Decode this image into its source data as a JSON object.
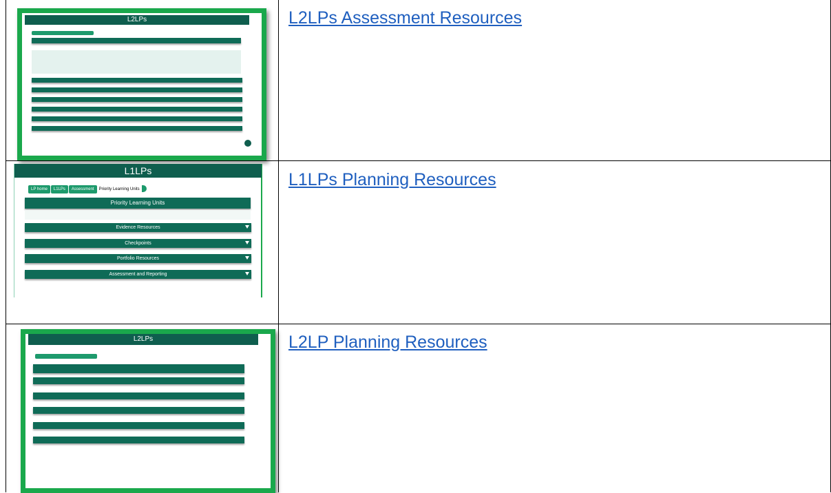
{
  "table": {
    "rows": [
      {
        "link": "L2LPs Assessment Resources",
        "thumbnail": {
          "title": "L2LPs"
        }
      },
      {
        "link": "L1LPs Planning Resources",
        "thumbnail": {
          "title": "L1LPs",
          "breadcrumb": [
            "LP home",
            "L1LPs",
            "Assessment",
            "Priority Learning Units"
          ],
          "heading": "Priority Learning Units",
          "sections": [
            "Evidence Resources",
            "Checkpoints",
            "Portfolio Resources",
            "Assessment and Reporting"
          ]
        }
      },
      {
        "link": "L2LP Planning Resources",
        "thumbnail": {
          "title": "L2LPs"
        }
      }
    ]
  }
}
